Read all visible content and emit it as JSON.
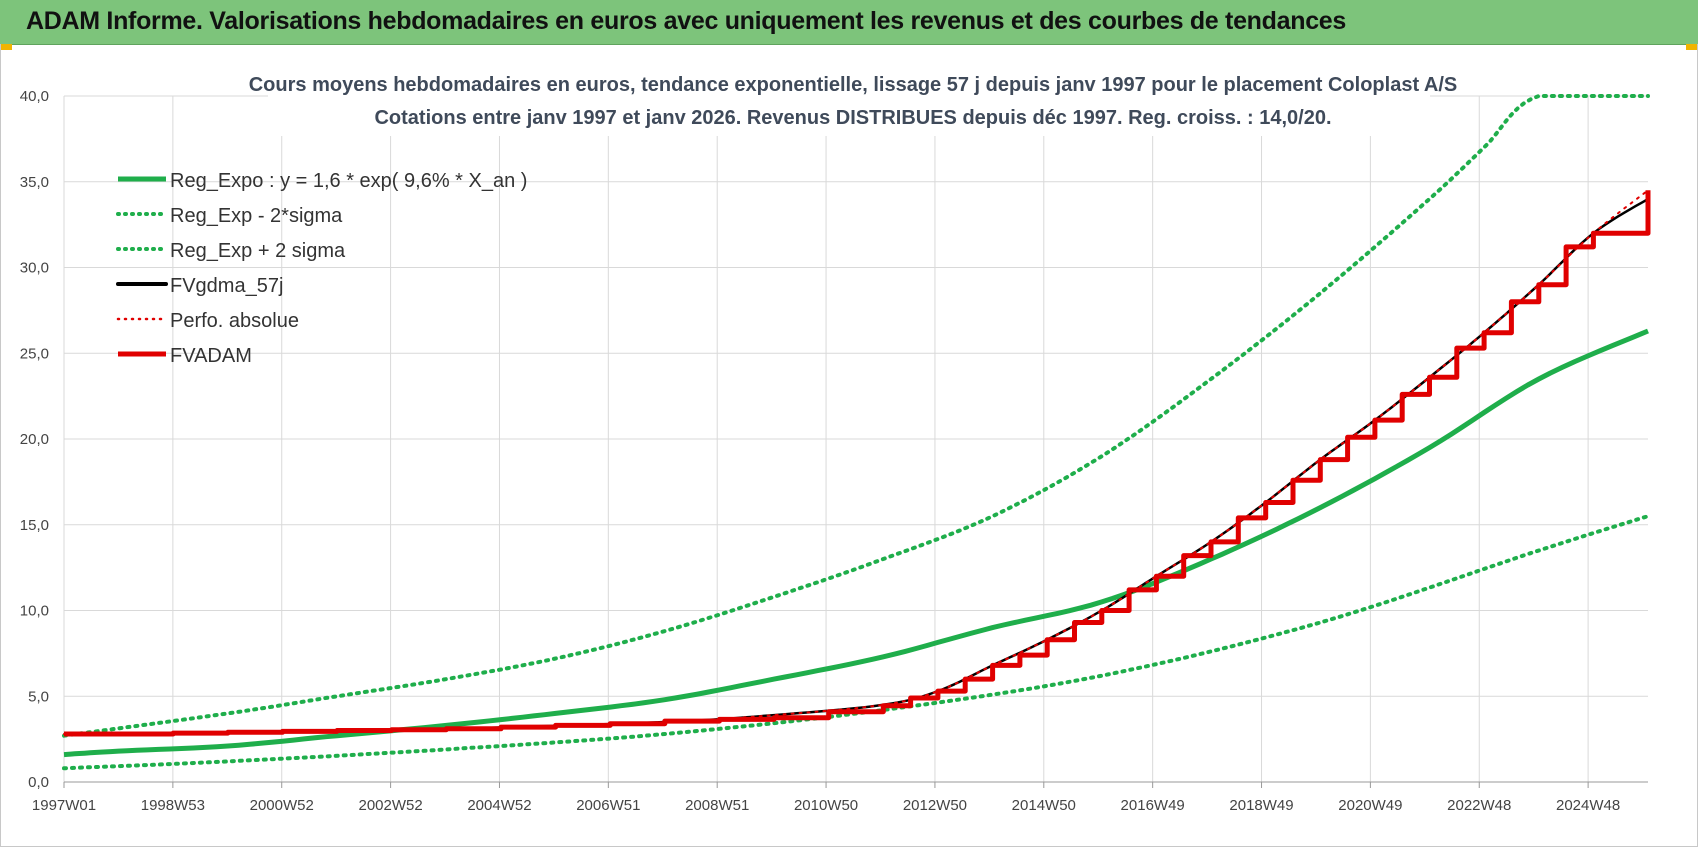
{
  "header": {
    "title": "ADAM Informe. Valorisations hebdomadaires en euros avec uniquement les revenus et des courbes de tendances"
  },
  "chart_data": {
    "type": "line",
    "title": "Cours moyens hebdomadaires en euros, tendance exponentielle, lissage 57 j depuis janv 1997 pour le placement Coloplast A/S",
    "subtitle": "Cotations entre janv 1997 et janv 2026. Revenus DISTRIBUES depuis déc 1997. Reg. croiss. : 14,0/20.",
    "xlabel": "",
    "ylabel": "",
    "x_ticks": [
      "1997W01",
      "1998W53",
      "2000W52",
      "2002W52",
      "2004W52",
      "2006W51",
      "2008W51",
      "2010W50",
      "2012W50",
      "2014W50",
      "2016W49",
      "2018W49",
      "2020W49",
      "2022W48",
      "2024W48"
    ],
    "x_range": [
      1997.0,
      2026.0
    ],
    "ylim": [
      0,
      40
    ],
    "y_ticks": [
      "0,0",
      "5,0",
      "10,0",
      "15,0",
      "20,0",
      "25,0",
      "30,0",
      "35,0",
      "40,0"
    ],
    "grid": true,
    "legend_position": "top-left",
    "series": [
      {
        "name": "Reg_Expo : y = 1,6 * exp( 9,6% *  X_an )",
        "style": "solid",
        "color": "#1fae4b",
        "x": [
          1997,
          1998,
          2000,
          2002,
          2004,
          2006,
          2008,
          2010,
          2012,
          2014,
          2016,
          2018,
          2020,
          2022,
          2024,
          2026
        ],
        "values": [
          1.6,
          1.8,
          2.1,
          2.7,
          3.3,
          4.0,
          4.8,
          6.0,
          7.3,
          9.0,
          10.5,
          13.0,
          16.0,
          19.5,
          23.5,
          26.3
        ]
      },
      {
        "name": "Reg_Exp - 2*sigma",
        "style": "dotted",
        "color": "#1fae4b",
        "x": [
          1997,
          2000,
          2004,
          2008,
          2012,
          2016,
          2020,
          2024,
          2026
        ],
        "values": [
          0.8,
          1.2,
          1.9,
          2.8,
          4.2,
          6.2,
          9.3,
          13.5,
          15.5
        ]
      },
      {
        "name": "Reg_Exp + 2 sigma",
        "style": "dotted",
        "color": "#1fae4b",
        "x": [
          1997,
          2000,
          2002,
          2004,
          2006,
          2008,
          2010,
          2012,
          2014,
          2016,
          2018,
          2020,
          2022,
          2023,
          2024,
          2026
        ],
        "values": [
          2.7,
          4.0,
          5.0,
          6.0,
          7.2,
          8.8,
          10.8,
          13.0,
          15.5,
          19.0,
          23.5,
          28.5,
          34.0,
          37.0,
          40.0,
          40.0
        ]
      },
      {
        "name": "FVgdma_57j",
        "style": "solid",
        "color": "#000000",
        "x": [
          1997,
          2000,
          2004,
          2008,
          2010,
          2012,
          2013,
          2014,
          2015,
          2016,
          2017,
          2018,
          2019,
          2020,
          2021,
          2022,
          2023,
          2024,
          2025,
          2026
        ],
        "values": [
          2.8,
          2.9,
          3.1,
          3.5,
          3.9,
          4.5,
          5.3,
          6.8,
          8.3,
          10.0,
          12.0,
          14.0,
          16.3,
          18.8,
          21.1,
          23.6,
          26.2,
          29.0,
          32.0,
          34.0
        ]
      },
      {
        "name": "Perfo. absolue",
        "style": "dotted",
        "color": "#e00000",
        "x": [
          1997,
          2000,
          2004,
          2008,
          2010,
          2012,
          2013,
          2014,
          2015,
          2016,
          2017,
          2018,
          2019,
          2020,
          2021,
          2022,
          2023,
          2024,
          2025,
          2026
        ],
        "values": [
          2.8,
          2.9,
          3.1,
          3.5,
          3.9,
          4.5,
          5.3,
          6.8,
          8.3,
          10.0,
          12.0,
          14.0,
          16.3,
          18.8,
          21.1,
          23.6,
          26.2,
          29.0,
          32.0,
          34.5
        ]
      },
      {
        "name": "FVADAM",
        "style": "steps",
        "color": "#e00000",
        "x": [
          1997,
          1998,
          1999,
          2000,
          2001,
          2002,
          2003,
          2004,
          2005,
          2006,
          2007,
          2008,
          2009,
          2010,
          2011,
          2012,
          2012.5,
          2013,
          2013.5,
          2014,
          2014.5,
          2015,
          2015.5,
          2016,
          2016.5,
          2017,
          2017.5,
          2018,
          2018.5,
          2019,
          2019.5,
          2020,
          2020.5,
          2021,
          2021.5,
          2022,
          2022.5,
          2023,
          2023.5,
          2024,
          2024.5,
          2025,
          2025.5,
          2026
        ],
        "values": [
          2.8,
          2.8,
          2.85,
          2.9,
          2.95,
          3.0,
          3.05,
          3.1,
          3.2,
          3.3,
          3.4,
          3.55,
          3.65,
          3.75,
          4.1,
          4.45,
          4.9,
          5.3,
          6.0,
          6.8,
          7.4,
          8.3,
          9.3,
          10.0,
          11.2,
          12.0,
          13.2,
          14.0,
          15.4,
          16.3,
          17.6,
          18.8,
          20.1,
          21.1,
          22.6,
          23.6,
          25.3,
          26.2,
          28.0,
          29.0,
          31.2,
          32.0,
          32.0,
          34.5
        ]
      }
    ]
  }
}
